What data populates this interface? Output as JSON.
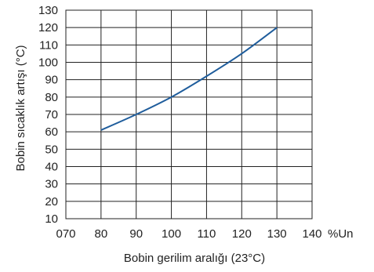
{
  "chart_data": {
    "type": "line",
    "xlabel": "Bobin gerilim aralığı (23°C)",
    "ylabel": "Bobin sıcaklık artışı (°C)",
    "xlim": [
      70,
      140
    ],
    "ylim": [
      10,
      130
    ],
    "x_ticks": [
      70,
      80,
      90,
      100,
      110,
      120,
      130,
      140
    ],
    "x_tick_labels": [
      "070",
      "80",
      "90",
      "100",
      "110",
      "120",
      "130",
      "140"
    ],
    "x_unit": "%Un",
    "y_ticks": [
      10,
      20,
      30,
      40,
      50,
      60,
      70,
      80,
      90,
      100,
      110,
      120,
      130
    ],
    "y_tick_labels": [
      "10",
      "20",
      "30",
      "40",
      "50",
      "60",
      "70",
      "80",
      "90",
      "100",
      "110",
      "120",
      "130"
    ],
    "grid": true,
    "legend": "none",
    "colors": {
      "line": "#1f5d9c",
      "grid": "#222222"
    },
    "series": [
      {
        "x": [
          80,
          90,
          100,
          110,
          120,
          130
        ],
        "y": [
          61,
          70,
          80,
          92,
          105,
          120
        ]
      }
    ]
  }
}
